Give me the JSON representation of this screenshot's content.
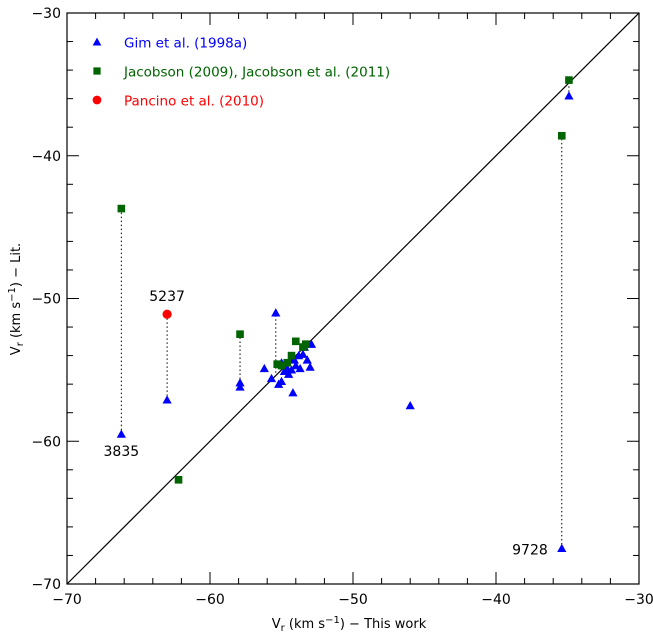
{
  "chart_data": {
    "type": "scatter",
    "xlabel": {
      "main": "V",
      "sub": "r",
      "rest": " (km s",
      "sup": "−1",
      "tail": ") − This work"
    },
    "ylabel": {
      "main": "V",
      "sub": "r",
      "rest": " (km s",
      "sup": "−1",
      "tail": ") − Lit."
    },
    "xlim": [
      -70,
      -30
    ],
    "ylim": [
      -70,
      -30
    ],
    "xticks": [
      -70,
      -60,
      -50,
      -40,
      -30
    ],
    "yticks": [
      -70,
      -60,
      -50,
      -40,
      -30
    ],
    "xtick_labels": [
      "−70",
      "−60",
      "−50",
      "−40",
      "−30"
    ],
    "ytick_labels": [
      "−70",
      "−60",
      "−50",
      "−40",
      "−30"
    ],
    "grid": false,
    "legend_position": "top-left",
    "reference_line": {
      "label": "",
      "points": [
        [
          -70,
          -70
        ],
        [
          -30,
          -30
        ]
      ]
    },
    "series": [
      {
        "name": "Gim et al. (1998a)",
        "marker": "triangle",
        "color": "#0000ff",
        "points": [
          [
            -66.2,
            -59.5
          ],
          [
            -63.0,
            -57.1
          ],
          [
            -57.9,
            -55.9
          ],
          [
            -57.9,
            -56.2
          ],
          [
            -56.2,
            -54.9
          ],
          [
            -55.7,
            -55.6
          ],
          [
            -55.4,
            -51.0
          ],
          [
            -55.2,
            -56.0
          ],
          [
            -55.0,
            -55.8
          ],
          [
            -55.0,
            -54.5
          ],
          [
            -54.8,
            -55.1
          ],
          [
            -54.6,
            -54.9
          ],
          [
            -54.5,
            -55.3
          ],
          [
            -54.3,
            -55.0
          ],
          [
            -54.2,
            -56.6
          ],
          [
            -54.1,
            -54.3
          ],
          [
            -54.0,
            -54.7
          ],
          [
            -53.8,
            -54.0
          ],
          [
            -53.7,
            -54.9
          ],
          [
            -53.5,
            -53.9
          ],
          [
            -53.4,
            -53.4
          ],
          [
            -53.2,
            -54.3
          ],
          [
            -53.0,
            -54.8
          ],
          [
            -52.9,
            -53.2
          ],
          [
            -46.0,
            -57.5
          ],
          [
            -35.4,
            -67.5
          ],
          [
            -34.9,
            -35.8
          ]
        ]
      },
      {
        "name": "Jacobson (2009), Jacobson et al. (2011)",
        "marker": "square",
        "color": "#006400",
        "points": [
          [
            -66.2,
            -43.7
          ],
          [
            -62.2,
            -62.7
          ],
          [
            -57.9,
            -52.5
          ],
          [
            -55.3,
            -54.6
          ],
          [
            -55.0,
            -54.7
          ],
          [
            -54.6,
            -54.5
          ],
          [
            -54.3,
            -54.0
          ],
          [
            -54.0,
            -53.0
          ],
          [
            -53.5,
            -53.4
          ],
          [
            -53.3,
            -53.2
          ],
          [
            -35.4,
            -38.6
          ],
          [
            -34.9,
            -34.7
          ]
        ]
      },
      {
        "name": "Pancino et al. (2010)",
        "marker": "circle",
        "color": "#ff0000",
        "points": [
          [
            -63.0,
            -51.1
          ]
        ]
      }
    ],
    "connectors": [
      {
        "x": -66.2,
        "y1": -59.5,
        "y2": -43.7
      },
      {
        "x": -63.0,
        "y1": -57.1,
        "y2": -51.1
      },
      {
        "x": -57.9,
        "y1": -56.2,
        "y2": -52.5
      },
      {
        "x": -55.4,
        "y1": -55.2,
        "y2": -51.0
      },
      {
        "x": -35.4,
        "y1": -67.5,
        "y2": -38.6
      },
      {
        "x": -34.9,
        "y1": -35.8,
        "y2": -34.7
      }
    ],
    "annotations": [
      {
        "text": "3835",
        "x": -66.2,
        "y": -59.5,
        "position": "below"
      },
      {
        "text": "5237",
        "x": -63.0,
        "y": -51.1,
        "position": "above"
      },
      {
        "text": "9728",
        "x": -35.4,
        "y": -67.5,
        "position": "left"
      }
    ]
  }
}
